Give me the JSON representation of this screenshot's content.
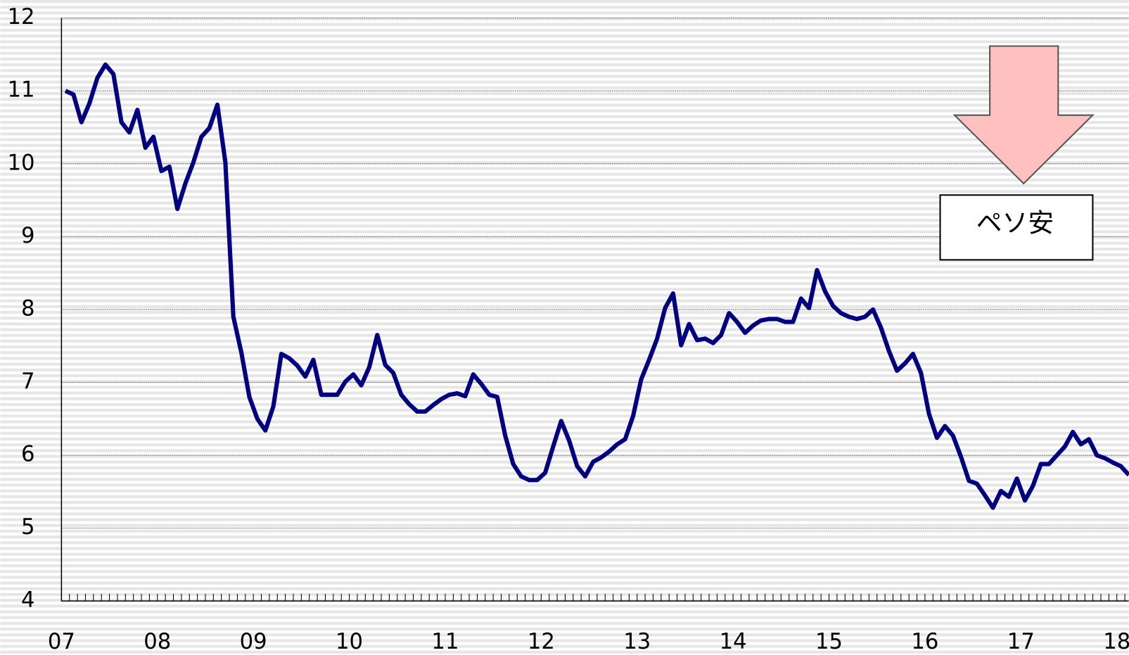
{
  "chart_data": {
    "type": "line",
    "categories": [
      "07",
      null,
      null,
      null,
      null,
      null,
      null,
      null,
      null,
      null,
      null,
      null,
      "08",
      null,
      null,
      null,
      null,
      null,
      null,
      null,
      null,
      null,
      null,
      null,
      "09",
      null,
      null,
      null,
      null,
      null,
      null,
      null,
      null,
      null,
      null,
      null,
      "10",
      null,
      null,
      null,
      null,
      null,
      null,
      null,
      null,
      null,
      null,
      null,
      "11",
      null,
      null,
      null,
      null,
      null,
      null,
      null,
      null,
      null,
      null,
      null,
      "12",
      null,
      null,
      null,
      null,
      null,
      null,
      null,
      null,
      null,
      null,
      null,
      "13",
      null,
      null,
      null,
      null,
      null,
      null,
      null,
      null,
      null,
      null,
      null,
      "14",
      null,
      null,
      null,
      null,
      null,
      null,
      null,
      null,
      null,
      null,
      null,
      "15",
      null,
      null,
      null,
      null,
      null,
      null,
      null,
      null,
      null,
      null,
      null,
      "16",
      null,
      null,
      null,
      null,
      null,
      null,
      null,
      null,
      null,
      null,
      null,
      "17",
      null,
      null,
      null,
      null,
      null,
      null,
      null,
      null,
      null,
      null,
      null,
      "18",
      null
    ],
    "series": [
      {
        "color": "#000080",
        "values": [
          11.0,
          10.95,
          10.57,
          10.83,
          11.18,
          11.36,
          11.23,
          10.57,
          10.43,
          10.74,
          10.22,
          10.37,
          9.9,
          9.96,
          9.38,
          9.73,
          10.02,
          10.37,
          10.49,
          10.81,
          10.02,
          7.9,
          7.41,
          6.8,
          6.5,
          6.34,
          6.67,
          7.39,
          7.33,
          7.23,
          7.08,
          7.31,
          6.83,
          6.83,
          6.83,
          7.01,
          7.11,
          6.96,
          7.21,
          7.65,
          7.24,
          7.13,
          6.83,
          6.7,
          6.6,
          6.6,
          6.69,
          6.77,
          6.83,
          6.85,
          6.81,
          7.11,
          6.98,
          6.83,
          6.8,
          6.27,
          5.88,
          5.71,
          5.66,
          5.66,
          5.76,
          6.12,
          6.47,
          6.2,
          5.85,
          5.71,
          5.91,
          5.97,
          6.05,
          6.15,
          6.22,
          6.54,
          7.04,
          7.31,
          7.6,
          8.02,
          8.22,
          7.51,
          7.8,
          7.58,
          7.6,
          7.54,
          7.65,
          7.95,
          7.83,
          7.68,
          7.78,
          7.85,
          7.87,
          7.87,
          7.83,
          7.83,
          8.15,
          8.02,
          8.54,
          8.25,
          8.05,
          7.95,
          7.9,
          7.87,
          7.9,
          8.0,
          7.75,
          7.43,
          7.16,
          7.26,
          7.39,
          7.13,
          6.57,
          6.24,
          6.4,
          6.27,
          5.98,
          5.65,
          5.61,
          5.45,
          5.28,
          5.51,
          5.43,
          5.68,
          5.38,
          5.58,
          5.88,
          5.88,
          6.0,
          6.12,
          6.32,
          6.15,
          6.22,
          6.0,
          5.96,
          5.9,
          5.85,
          5.73
        ]
      }
    ],
    "ylim": [
      4,
      12
    ],
    "yticks": [
      4,
      5,
      6,
      7,
      8,
      9,
      10,
      11,
      12
    ],
    "grid": true,
    "annotation": "ペソ安"
  }
}
